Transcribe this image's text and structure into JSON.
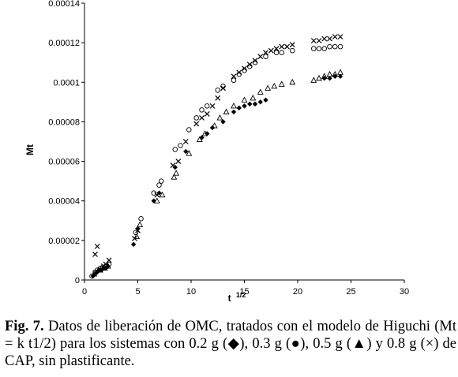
{
  "chart_data": {
    "type": "scatter",
    "title": "",
    "xlabel": "t",
    "xlabel_sup": "1/2",
    "ylabel": "Mt",
    "xlim": [
      0,
      30
    ],
    "ylim": [
      0,
      0.00014
    ],
    "xticks": [
      0,
      5,
      10,
      15,
      20,
      25,
      30
    ],
    "yticks": [
      0,
      2e-05,
      4e-05,
      6e-05,
      8e-05,
      0.0001,
      0.00012,
      0.00014
    ],
    "ytick_labels": [
      "0",
      "0.00002",
      "0.00004",
      "0.00006",
      "0.00008",
      "0.0001",
      "0.00012",
      "0.00014"
    ],
    "grid": false,
    "legend": "none",
    "series": [
      {
        "marker": "diamond",
        "points": [
          [
            0.8,
            2e-06
          ],
          [
            1.0,
            3e-06
          ],
          [
            1.2,
            4e-06
          ],
          [
            1.4,
            5e-06
          ],
          [
            1.6,
            5e-06
          ],
          [
            1.8,
            6e-06
          ],
          [
            2.0,
            6e-06
          ],
          [
            2.2,
            7e-06
          ],
          [
            4.6,
            1.8e-05
          ],
          [
            5.0,
            2.6e-05
          ],
          [
            6.5,
            4e-05
          ],
          [
            7.0,
            4.4e-05
          ],
          [
            8.5,
            5.7e-05
          ],
          [
            9.5,
            6.5e-05
          ],
          [
            11,
            7.2e-05
          ],
          [
            11.5,
            7.4e-05
          ],
          [
            12,
            7.7e-05
          ],
          [
            13,
            8e-05
          ],
          [
            14,
            8.5e-05
          ],
          [
            14.5,
            8.7e-05
          ],
          [
            15,
            8.8e-05
          ],
          [
            15.5,
            8.9e-05
          ],
          [
            16,
            8.9e-05
          ],
          [
            16.5,
            9e-05
          ],
          [
            17,
            9.1e-05
          ],
          [
            22.5,
            0.000102
          ],
          [
            23,
            0.000102
          ],
          [
            23.5,
            0.000103
          ],
          [
            24,
            0.000103
          ]
        ]
      },
      {
        "marker": "circle",
        "points": [
          [
            0.7,
            2e-06
          ],
          [
            1.0,
            4e-06
          ],
          [
            1.2,
            5e-06
          ],
          [
            1.5,
            6e-06
          ],
          [
            1.7,
            6e-06
          ],
          [
            2.0,
            7e-06
          ],
          [
            2.3,
            8e-06
          ],
          [
            4.8,
            2.4e-05
          ],
          [
            5.3,
            3.1e-05
          ],
          [
            6.5,
            4.4e-05
          ],
          [
            7.0,
            4.8e-05
          ],
          [
            7.2,
            5e-05
          ],
          [
            8.5,
            6.6e-05
          ],
          [
            9.0,
            6.8e-05
          ],
          [
            9.8,
            7.6e-05
          ],
          [
            10.5,
            8.2e-05
          ],
          [
            11.0,
            8.6e-05
          ],
          [
            11.5,
            8.8e-05
          ],
          [
            12.5,
            9.6e-05
          ],
          [
            13.0,
            9.8e-05
          ],
          [
            14.0,
            0.000101
          ],
          [
            14.5,
            0.000104
          ],
          [
            15.0,
            0.000106
          ],
          [
            15.5,
            0.000108
          ],
          [
            16.0,
            0.00011
          ],
          [
            17.0,
            0.000113
          ],
          [
            18.0,
            0.000115
          ],
          [
            18.5,
            0.000115
          ],
          [
            19.5,
            0.000116
          ],
          [
            21.5,
            0.000117
          ],
          [
            22.0,
            0.000117
          ],
          [
            22.5,
            0.000117
          ],
          [
            23.0,
            0.000118
          ],
          [
            23.5,
            0.000118
          ],
          [
            24.0,
            0.000118
          ]
        ]
      },
      {
        "marker": "triangle",
        "points": [
          [
            0.9,
            3e-06
          ],
          [
            1.3,
            5e-06
          ],
          [
            1.6,
            6e-06
          ],
          [
            1.9,
            6e-06
          ],
          [
            2.2,
            7e-06
          ],
          [
            4.9,
            2.2e-05
          ],
          [
            5.2,
            2.8e-05
          ],
          [
            6.8,
            4e-05
          ],
          [
            7.3,
            4.3e-05
          ],
          [
            8.4,
            5.2e-05
          ],
          [
            8.6,
            5.4e-05
          ],
          [
            9.8,
            6.4e-05
          ],
          [
            10.8,
            7.1e-05
          ],
          [
            11.3,
            7.4e-05
          ],
          [
            12.2,
            7.8e-05
          ],
          [
            12.7,
            8.2e-05
          ],
          [
            13.3,
            8.5e-05
          ],
          [
            14.0,
            8.8e-05
          ],
          [
            15.0,
            9.1e-05
          ],
          [
            15.8,
            9.2e-05
          ],
          [
            16.5,
            9.5e-05
          ],
          [
            17.2,
            9.7e-05
          ],
          [
            17.8,
            9.8e-05
          ],
          [
            18.5,
            9.9e-05
          ],
          [
            19.5,
            0.0001
          ],
          [
            21.5,
            0.000101
          ],
          [
            22.0,
            0.000102
          ],
          [
            22.5,
            0.000103
          ],
          [
            23.0,
            0.000104
          ],
          [
            23.5,
            0.000104
          ],
          [
            24.0,
            0.000105
          ]
        ]
      },
      {
        "marker": "cross",
        "points": [
          [
            1.0,
            1.3e-05
          ],
          [
            1.2,
            1.7e-05
          ],
          [
            1.5,
            5e-06
          ],
          [
            1.8,
            7e-06
          ],
          [
            2.0,
            8e-06
          ],
          [
            2.3,
            1e-05
          ],
          [
            4.7,
            2.1e-05
          ],
          [
            5.0,
            2.5e-05
          ],
          [
            6.8,
            4.3e-05
          ],
          [
            8.3,
            5.8e-05
          ],
          [
            8.8,
            6e-05
          ],
          [
            9.5,
            7e-05
          ],
          [
            10.5,
            7.9e-05
          ],
          [
            11.0,
            8.2e-05
          ],
          [
            11.5,
            8.4e-05
          ],
          [
            12.0,
            8.8e-05
          ],
          [
            12.5,
            9.2e-05
          ],
          [
            13.0,
            9.7e-05
          ],
          [
            14.0,
            0.000103
          ],
          [
            14.5,
            0.000105
          ],
          [
            15.0,
            0.000107
          ],
          [
            15.5,
            0.000109
          ],
          [
            16.0,
            0.000111
          ],
          [
            16.5,
            0.000113
          ],
          [
            17.0,
            0.000115
          ],
          [
            17.5,
            0.000116
          ],
          [
            18.0,
            0.000117
          ],
          [
            18.5,
            0.000118
          ],
          [
            19.0,
            0.000118
          ],
          [
            19.5,
            0.000119
          ],
          [
            21.5,
            0.000121
          ],
          [
            22.0,
            0.000121
          ],
          [
            22.5,
            0.000122
          ],
          [
            23.0,
            0.000122
          ],
          [
            23.5,
            0.000123
          ],
          [
            24.0,
            0.000123
          ]
        ]
      }
    ]
  },
  "caption": {
    "label": "Fig. 7.",
    "text": " Datos de liberación de OMC, tratados con el modelo de Higuchi (Mt = k t1/2) para los sistemas con 0.2 g (◆), 0.3 g (●), 0.5 g (▲) y 0.8 g (×) de CAP, sin plastificante."
  }
}
